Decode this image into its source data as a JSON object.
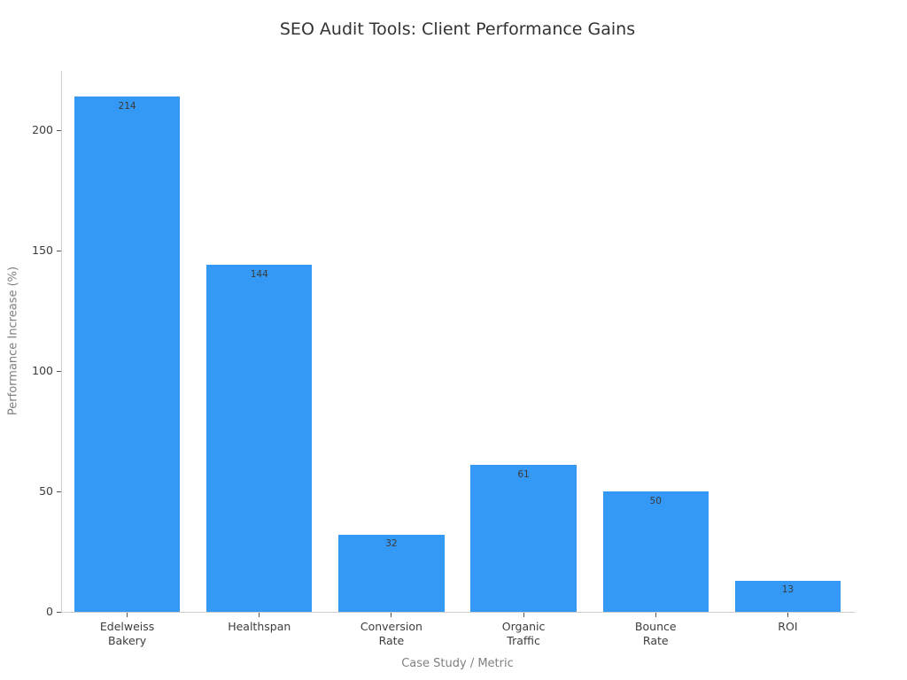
{
  "chart_data": {
    "type": "bar",
    "title": "SEO Audit Tools: Client Performance Gains",
    "xlabel": "Case Study / Metric",
    "ylabel": "Performance Increase (%)",
    "categories": [
      "Edelweiss\nBakery",
      "Healthspan",
      "Conversion\nRate",
      "Organic\nTraffic",
      "Bounce\nRate",
      "ROI"
    ],
    "values": [
      214,
      144,
      32,
      61,
      50,
      13
    ],
    "value_labels": [
      "214",
      "144",
      "32",
      "61",
      "50",
      "13"
    ],
    "yticks": [
      0,
      50,
      100,
      150,
      200
    ],
    "ylim": [
      0,
      224.7
    ],
    "grid": false,
    "legend": false,
    "bar_color": "#3498f5",
    "colors": {
      "title": "#333333",
      "axis_label": "#808080",
      "tick_label": "#3d3d3d",
      "value_label": "#3a3a3a",
      "spine": "#cccccc",
      "tick_mark": "#555555"
    }
  }
}
